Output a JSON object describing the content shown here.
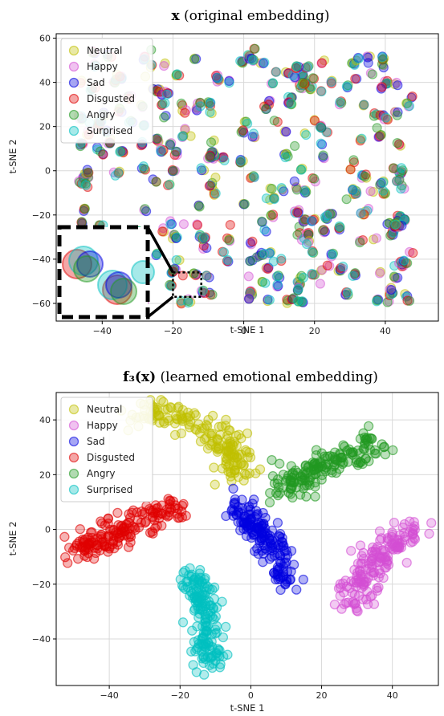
{
  "chart_data": [
    {
      "type": "scatter",
      "title_main": "x",
      "title_rest": " (original embedding)",
      "xlabel": "t-SNE 1",
      "ylabel": "t-SNE 2",
      "xlim": [
        -53,
        55
      ],
      "ylim": [
        -68,
        62
      ],
      "xticks": [
        -40,
        -20,
        0,
        20,
        40
      ],
      "yticks": [
        -60,
        -40,
        -20,
        0,
        20,
        40,
        60
      ],
      "grid": true,
      "legend_position": "top-left",
      "mixed_overlap": true,
      "inset_zoom": {
        "source_x": [
          -20,
          -12
        ],
        "source_y": [
          -57,
          -46
        ],
        "style": "dashed-box"
      },
      "series": [
        {
          "name": "Neutral",
          "color": "#bfbf00",
          "region": {
            "xmin": -47,
            "xmax": 48,
            "ymin": -60,
            "ymax": 55
          }
        },
        {
          "name": "Happy",
          "color": "#d34fd3",
          "region": {
            "xmin": -47,
            "xmax": 48,
            "ymin": -60,
            "ymax": 55
          }
        },
        {
          "name": "Sad",
          "color": "#0000e0",
          "region": {
            "xmin": -47,
            "xmax": 48,
            "ymin": -60,
            "ymax": 55
          }
        },
        {
          "name": "Disgusted",
          "color": "#e00000",
          "region": {
            "xmin": -47,
            "xmax": 48,
            "ymin": -60,
            "ymax": 55
          }
        },
        {
          "name": "Angry",
          "color": "#229922",
          "region": {
            "xmin": -47,
            "xmax": 48,
            "ymin": -60,
            "ymax": 55
          }
        },
        {
          "name": "Surprised",
          "color": "#00bfbf",
          "region": {
            "xmin": -47,
            "xmax": 48,
            "ymin": -60,
            "ymax": 55
          }
        }
      ]
    },
    {
      "type": "scatter",
      "title_main": "f₃(x)",
      "title_rest": " (learned emotional embedding)",
      "xlabel": "t-SNE 1",
      "ylabel": "t-SNE 2",
      "xlim": [
        -55,
        53
      ],
      "ylim": [
        -57,
        50
      ],
      "xticks": [
        -40,
        -20,
        0,
        20,
        40
      ],
      "yticks": [
        -40,
        -20,
        0,
        20,
        40
      ],
      "grid": true,
      "legend_position": "top-left",
      "mixed_overlap": false,
      "series": [
        {
          "name": "Neutral",
          "color": "#bfbf00",
          "path": [
            [
              -32,
              44
            ],
            [
              -23,
              41
            ],
            [
              -13,
              37
            ],
            [
              -8,
              32
            ],
            [
              -5,
              27
            ],
            [
              -4,
              18
            ]
          ],
          "spread": 2.6
        },
        {
          "name": "Happy",
          "color": "#d34fd3",
          "path": [
            [
              28,
              -30
            ],
            [
              31,
              -20
            ],
            [
              35,
              -12
            ],
            [
              40,
              -5
            ],
            [
              46,
              0
            ]
          ],
          "spread": 2.6
        },
        {
          "name": "Sad",
          "color": "#0000e0",
          "path": [
            [
              -3,
              10
            ],
            [
              0,
              2
            ],
            [
              5,
              -3
            ],
            [
              8,
              -10
            ],
            [
              10,
              -20
            ]
          ],
          "spread": 2.4
        },
        {
          "name": "Disgusted",
          "color": "#e00000",
          "path": [
            [
              -50,
              -8
            ],
            [
              -43,
              -4
            ],
            [
              -36,
              0
            ],
            [
              -29,
              4
            ],
            [
              -22,
              8
            ]
          ],
          "spread": 2.6
        },
        {
          "name": "Angry",
          "color": "#229922",
          "path": [
            [
              9,
              14
            ],
            [
              14,
              19
            ],
            [
              21,
              23
            ],
            [
              28,
              27
            ],
            [
              36,
              32
            ]
          ],
          "spread": 2.6
        },
        {
          "name": "Surprised",
          "color": "#00bfbf",
          "path": [
            [
              -16,
              -16
            ],
            [
              -14,
              -24
            ],
            [
              -13,
              -33
            ],
            [
              -12,
              -42
            ],
            [
              -12,
              -50
            ]
          ],
          "spread": 2.2
        }
      ]
    }
  ]
}
